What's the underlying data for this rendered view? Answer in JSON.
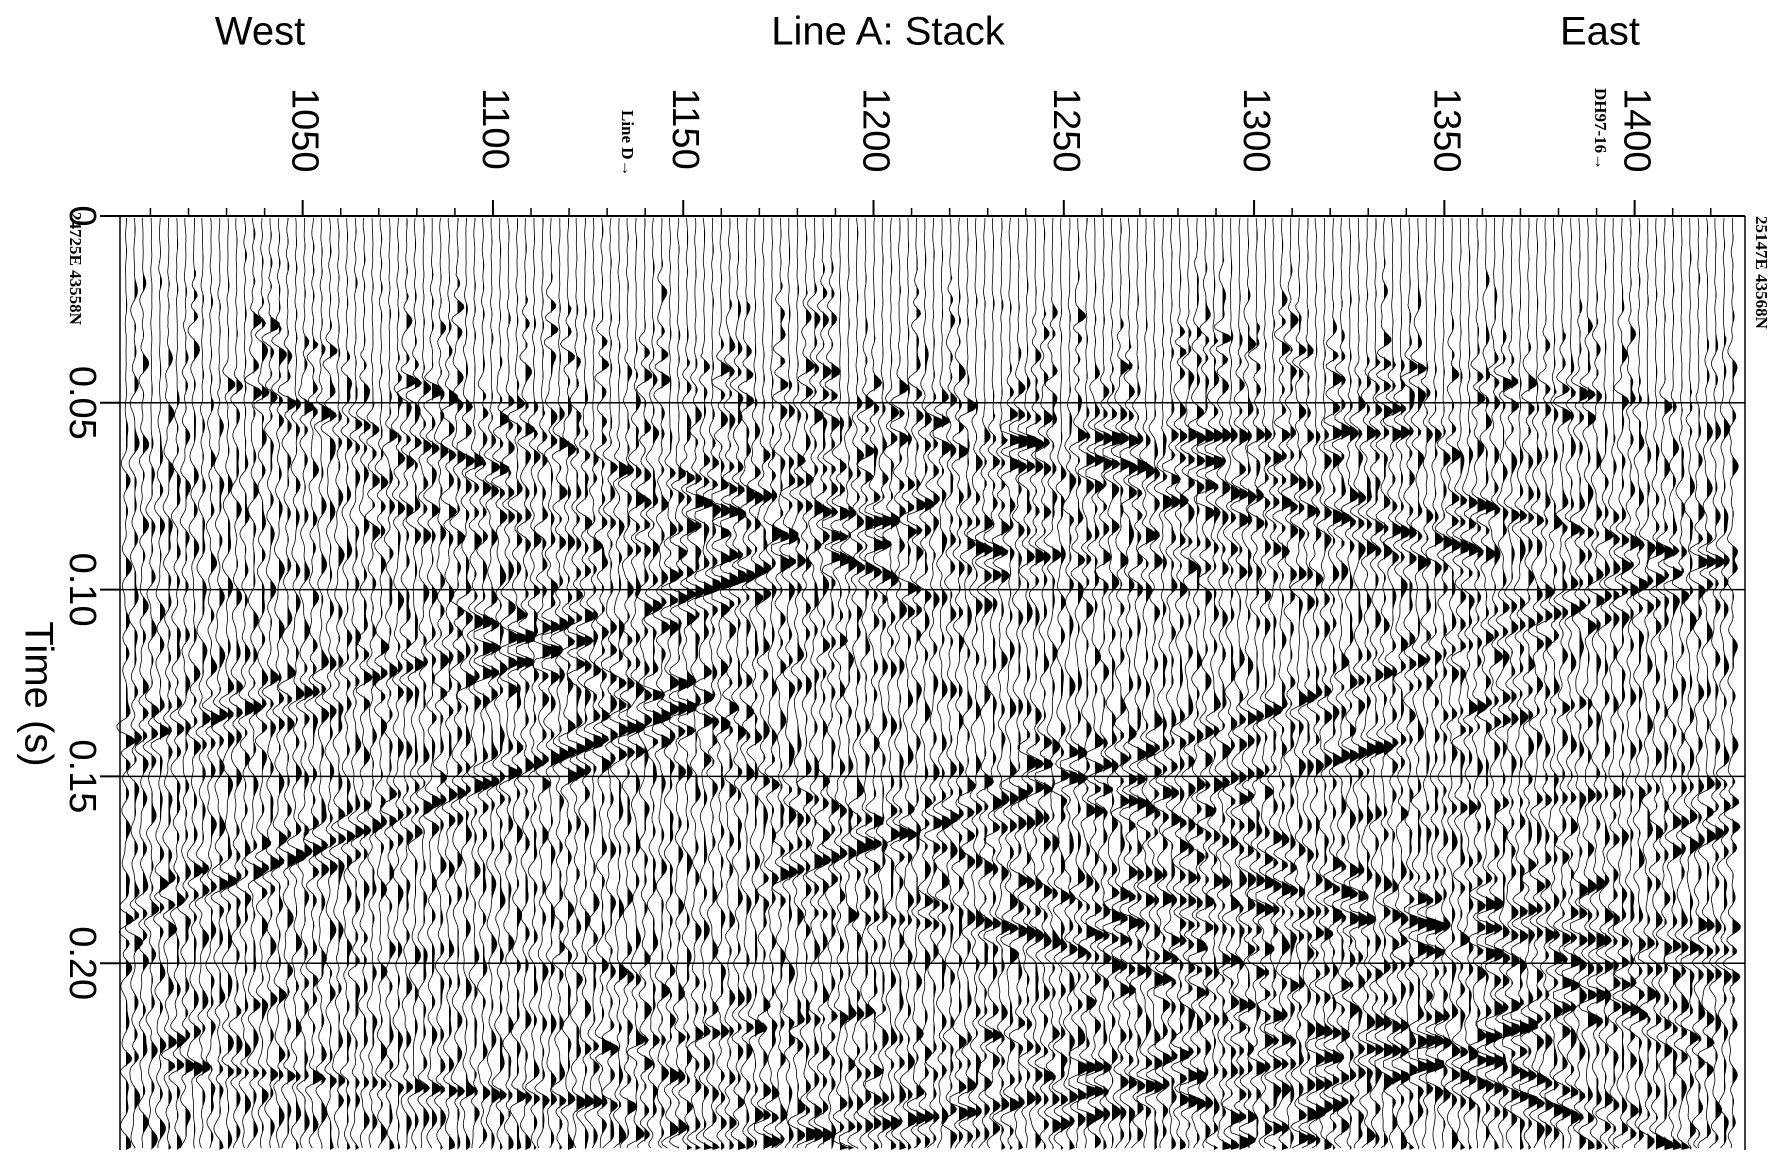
{
  "chart_data": {
    "type": "seismic",
    "title": "Line A: Stack",
    "left_label": "West",
    "right_label": "East",
    "y_label": "Time (s)",
    "line_marker": "Line D→",
    "well_marker": "DH97-16→",
    "start_coord": "24725E 43558N",
    "end_coord": "25147E 43568N",
    "xlim": [
      1002,
      1429
    ],
    "xticks": [
      1050,
      1100,
      1150,
      1200,
      1250,
      1300,
      1350,
      1400
    ],
    "ylim": [
      0,
      0.25
    ],
    "yticks": [
      0,
      0.05,
      {
        "value": 0.1,
        "label": "0.10"
      },
      0.15,
      {
        "value": 0.2,
        "label": "0.20"
      }
    ],
    "grid": true,
    "color": "#000000"
  }
}
